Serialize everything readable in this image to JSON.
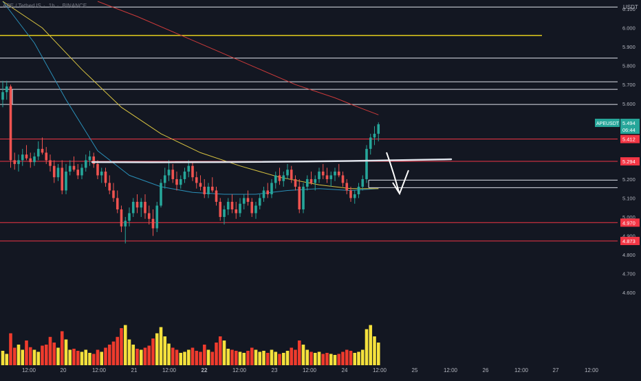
{
  "header": {
    "symbol": "APE / TetherUS",
    "interval": "1h",
    "exchange": "BINANCE"
  },
  "colors": {
    "background": "#131722",
    "up": "#26a69a",
    "down": "#ef5350",
    "vol_up": "#f5e13c",
    "vol_down": "#ef3b2d",
    "axis_text": "#b2b5be",
    "grid": "#1e222d",
    "yellow_line": "#e8d21c",
    "ma_blue": "#2a8fb8",
    "ma_yellow": "#d9c441",
    "ma_red": "#cc3a3a",
    "red_level": "#f23645",
    "white_level": "#e0e3eb",
    "last_price_badge": "#26a69a",
    "arrow": "#ffffff"
  },
  "chart_data": {
    "type": "candlestick",
    "currency_label": "USDT",
    "y_axis": {
      "range": [
        4.55,
        6.14
      ],
      "ticks": [
        "6.100",
        "6.000",
        "5.900",
        "5.800",
        "5.700",
        "5.600",
        "5.200",
        "5.100",
        "5.000",
        "4.900",
        "4.800",
        "4.700",
        "4.600"
      ],
      "tick_values": [
        6.1,
        6.0,
        5.9,
        5.8,
        5.7,
        5.6,
        5.2,
        5.1,
        5.0,
        4.9,
        4.8,
        4.7,
        4.6
      ]
    },
    "x_axis": {
      "labels": [
        "12:00",
        "20",
        "12:00",
        "21",
        "12:00",
        "22",
        "12:00",
        "23",
        "12:00",
        "24",
        "12:00",
        "25",
        "12:00",
        "26",
        "12:00",
        "27",
        "12:00"
      ],
      "bold": [
        "22"
      ]
    },
    "last_price": {
      "value": "5.494",
      "countdown": "06:44",
      "name": "APEUSDT"
    },
    "price_labels": [
      {
        "value": "5.412",
        "price": 5.412
      },
      {
        "value": "5.294",
        "price": 5.294
      },
      {
        "value": "4.970",
        "price": 4.97
      },
      {
        "value": "4.873",
        "price": 4.873
      }
    ],
    "horizontal_levels": [
      {
        "price": 6.11,
        "color": "white"
      },
      {
        "price": 5.96,
        "color": "yellow"
      },
      {
        "price": 5.84,
        "color": "white"
      },
      {
        "price": 5.715,
        "color": "white"
      },
      {
        "price": 5.675,
        "color": "white"
      },
      {
        "price": 5.595,
        "color": "white"
      },
      {
        "price": 5.412,
        "color": "red"
      },
      {
        "price": 5.294,
        "color": "red"
      },
      {
        "price": 5.195,
        "color": "white"
      },
      {
        "price": 5.155,
        "color": "white"
      },
      {
        "price": 4.97,
        "color": "red"
      },
      {
        "price": 4.873,
        "color": "red"
      }
    ],
    "resistance_line": {
      "from_price": 5.29,
      "to_price": 5.305,
      "color": "white"
    },
    "ohlc": [
      [
        5.62,
        5.72,
        5.58,
        5.66
      ],
      [
        5.66,
        5.72,
        5.62,
        5.69
      ],
      [
        5.69,
        5.7,
        5.26,
        5.3
      ],
      [
        5.3,
        5.34,
        5.25,
        5.28
      ],
      [
        5.28,
        5.33,
        5.24,
        5.3
      ],
      [
        5.3,
        5.36,
        5.27,
        5.33
      ],
      [
        5.33,
        5.38,
        5.3,
        5.31
      ],
      [
        5.31,
        5.34,
        5.26,
        5.29
      ],
      [
        5.29,
        5.34,
        5.27,
        5.32
      ],
      [
        5.32,
        5.4,
        5.3,
        5.36
      ],
      [
        5.36,
        5.42,
        5.33,
        5.34
      ],
      [
        5.34,
        5.37,
        5.28,
        5.3
      ],
      [
        5.3,
        5.33,
        5.24,
        5.27
      ],
      [
        5.27,
        5.3,
        5.18,
        5.21
      ],
      [
        5.21,
        5.28,
        5.19,
        5.26
      ],
      [
        5.26,
        5.3,
        5.12,
        5.14
      ],
      [
        5.14,
        5.28,
        5.12,
        5.24
      ],
      [
        5.24,
        5.3,
        5.22,
        5.27
      ],
      [
        5.27,
        5.32,
        5.24,
        5.25
      ],
      [
        5.25,
        5.28,
        5.2,
        5.22
      ],
      [
        5.22,
        5.28,
        5.2,
        5.26
      ],
      [
        5.26,
        5.33,
        5.24,
        5.3
      ],
      [
        5.3,
        5.35,
        5.27,
        5.32
      ],
      [
        5.32,
        5.34,
        5.26,
        5.28
      ],
      [
        5.28,
        5.3,
        5.2,
        5.22
      ],
      [
        5.22,
        5.26,
        5.18,
        5.24
      ],
      [
        5.24,
        5.26,
        5.16,
        5.18
      ],
      [
        5.18,
        5.22,
        5.12,
        5.14
      ],
      [
        5.14,
        5.18,
        5.08,
        5.1
      ],
      [
        5.1,
        5.14,
        5.02,
        5.04
      ],
      [
        5.04,
        5.06,
        4.92,
        4.95
      ],
      [
        4.95,
        5.0,
        4.86,
        4.98
      ],
      [
        4.98,
        5.05,
        4.95,
        5.02
      ],
      [
        5.02,
        5.1,
        5.0,
        5.08
      ],
      [
        5.08,
        5.12,
        5.02,
        5.05
      ],
      [
        5.05,
        5.1,
        5.0,
        5.08
      ],
      [
        5.08,
        5.12,
        4.99,
        5.02
      ],
      [
        5.02,
        5.06,
        4.96,
        4.99
      ],
      [
        4.99,
        5.04,
        4.9,
        4.94
      ],
      [
        4.94,
        5.08,
        4.92,
        5.06
      ],
      [
        5.06,
        5.2,
        5.05,
        5.18
      ],
      [
        5.18,
        5.26,
        5.15,
        5.22
      ],
      [
        5.22,
        5.3,
        5.19,
        5.25
      ],
      [
        5.25,
        5.28,
        5.18,
        5.2
      ],
      [
        5.2,
        5.24,
        5.14,
        5.17
      ],
      [
        5.17,
        5.22,
        5.15,
        5.2
      ],
      [
        5.2,
        5.26,
        5.18,
        5.24
      ],
      [
        5.24,
        5.3,
        5.21,
        5.27
      ],
      [
        5.27,
        5.29,
        5.19,
        5.21
      ],
      [
        5.21,
        5.24,
        5.15,
        5.18
      ],
      [
        5.18,
        5.22,
        5.14,
        5.16
      ],
      [
        5.16,
        5.2,
        5.1,
        5.12
      ],
      [
        5.12,
        5.18,
        5.1,
        5.16
      ],
      [
        5.16,
        5.21,
        5.13,
        5.14
      ],
      [
        5.14,
        5.16,
        5.06,
        5.08
      ],
      [
        5.08,
        5.1,
        4.98,
        5.0
      ],
      [
        5.0,
        5.06,
        4.96,
        5.04
      ],
      [
        5.04,
        5.1,
        5.01,
        5.08
      ],
      [
        5.08,
        5.12,
        5.02,
        5.04
      ],
      [
        5.04,
        5.08,
        4.99,
        5.02
      ],
      [
        5.02,
        5.1,
        5.0,
        5.07
      ],
      [
        5.07,
        5.12,
        5.04,
        5.1
      ],
      [
        5.1,
        5.14,
        5.06,
        5.08
      ],
      [
        5.08,
        5.1,
        5.0,
        5.02
      ],
      [
        5.02,
        5.08,
        4.99,
        5.06
      ],
      [
        5.06,
        5.12,
        5.04,
        5.1
      ],
      [
        5.1,
        5.16,
        5.08,
        5.14
      ],
      [
        5.14,
        5.18,
        5.1,
        5.12
      ],
      [
        5.12,
        5.2,
        5.1,
        5.18
      ],
      [
        5.18,
        5.24,
        5.15,
        5.22
      ],
      [
        5.22,
        5.26,
        5.17,
        5.19
      ],
      [
        5.19,
        5.24,
        5.16,
        5.22
      ],
      [
        5.22,
        5.28,
        5.2,
        5.25
      ],
      [
        5.25,
        5.27,
        5.18,
        5.2
      ],
      [
        5.2,
        5.22,
        5.14,
        5.16
      ],
      [
        5.16,
        5.2,
        5.02,
        5.04
      ],
      [
        5.04,
        5.18,
        5.02,
        5.16
      ],
      [
        5.16,
        5.22,
        5.14,
        5.2
      ],
      [
        5.2,
        5.24,
        5.17,
        5.18
      ],
      [
        5.18,
        5.22,
        5.14,
        5.2
      ],
      [
        5.2,
        5.26,
        5.18,
        5.24
      ],
      [
        5.24,
        5.28,
        5.2,
        5.22
      ],
      [
        5.22,
        5.26,
        5.18,
        5.2
      ],
      [
        5.2,
        5.24,
        5.16,
        5.22
      ],
      [
        5.22,
        5.26,
        5.19,
        5.24
      ],
      [
        5.24,
        5.28,
        5.21,
        5.22
      ],
      [
        5.22,
        5.24,
        5.16,
        5.18
      ],
      [
        5.18,
        5.2,
        5.12,
        5.14
      ],
      [
        5.14,
        5.16,
        5.08,
        5.1
      ],
      [
        5.1,
        5.14,
        5.07,
        5.12
      ],
      [
        5.12,
        5.18,
        5.1,
        5.16
      ],
      [
        5.16,
        5.22,
        5.14,
        5.2
      ],
      [
        5.2,
        5.38,
        5.18,
        5.36
      ],
      [
        5.36,
        5.44,
        5.33,
        5.42
      ],
      [
        5.42,
        5.48,
        5.38,
        5.44
      ],
      [
        5.44,
        5.5,
        5.4,
        5.49
      ]
    ],
    "volume": [
      0.28,
      0.22,
      0.62,
      0.34,
      0.4,
      0.3,
      0.48,
      0.35,
      0.3,
      0.26,
      0.38,
      0.4,
      0.55,
      0.44,
      0.34,
      0.66,
      0.5,
      0.3,
      0.32,
      0.28,
      0.26,
      0.3,
      0.24,
      0.22,
      0.3,
      0.26,
      0.34,
      0.4,
      0.46,
      0.55,
      0.72,
      0.78,
      0.5,
      0.4,
      0.32,
      0.3,
      0.34,
      0.38,
      0.52,
      0.62,
      0.74,
      0.56,
      0.42,
      0.34,
      0.3,
      0.24,
      0.26,
      0.3,
      0.34,
      0.28,
      0.26,
      0.4,
      0.3,
      0.26,
      0.44,
      0.56,
      0.48,
      0.32,
      0.3,
      0.28,
      0.26,
      0.24,
      0.28,
      0.34,
      0.3,
      0.26,
      0.28,
      0.24,
      0.3,
      0.26,
      0.22,
      0.24,
      0.28,
      0.34,
      0.3,
      0.48,
      0.4,
      0.3,
      0.26,
      0.24,
      0.26,
      0.22,
      0.24,
      0.22,
      0.2,
      0.22,
      0.26,
      0.3,
      0.28,
      0.24,
      0.26,
      0.3,
      0.7,
      0.78,
      0.56,
      0.44
    ],
    "moving_averages": [
      {
        "name": "MA-blue",
        "color_key": "ma_blue",
        "points": [
          [
            0,
            6.14
          ],
          [
            8,
            5.92
          ],
          [
            16,
            5.62
          ],
          [
            24,
            5.35
          ],
          [
            32,
            5.22
          ],
          [
            40,
            5.16
          ],
          [
            48,
            5.13
          ],
          [
            56,
            5.12
          ],
          [
            64,
            5.12
          ],
          [
            72,
            5.14
          ],
          [
            80,
            5.15
          ],
          [
            88,
            5.14
          ],
          [
            95,
            5.15
          ]
        ]
      },
      {
        "name": "MA-yellow",
        "color_key": "ma_yellow",
        "points": [
          [
            0,
            6.14
          ],
          [
            10,
            6.0
          ],
          [
            20,
            5.78
          ],
          [
            30,
            5.58
          ],
          [
            40,
            5.44
          ],
          [
            50,
            5.34
          ],
          [
            60,
            5.27
          ],
          [
            70,
            5.21
          ],
          [
            80,
            5.17
          ],
          [
            88,
            5.15
          ],
          [
            95,
            5.15
          ]
        ]
      },
      {
        "name": "MA-red",
        "color_key": "ma_red",
        "points": [
          [
            24,
            6.14
          ],
          [
            34,
            6.06
          ],
          [
            44,
            5.97
          ],
          [
            54,
            5.88
          ],
          [
            64,
            5.79
          ],
          [
            74,
            5.7
          ],
          [
            84,
            5.63
          ],
          [
            90,
            5.58
          ],
          [
            95,
            5.54
          ]
        ]
      }
    ]
  }
}
